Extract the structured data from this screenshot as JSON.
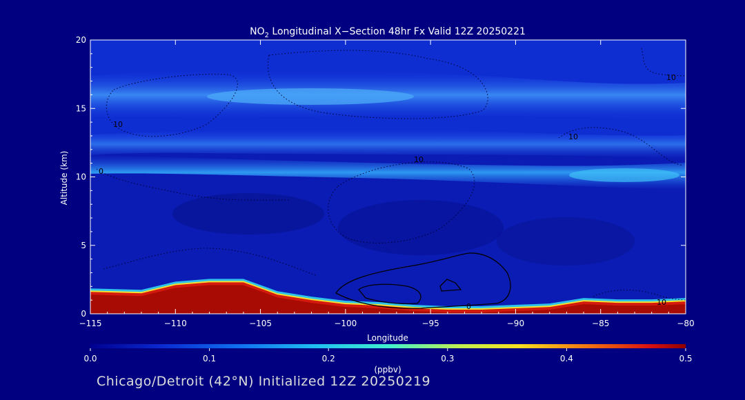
{
  "chart_data": {
    "type": "heatmap",
    "title_prefix": "NO",
    "title_sub": "2",
    "title_suffix": " Longitudinal X−Section 48hr  Fx Valid 12Z 20250221",
    "xlabel": "Longitude",
    "ylabel": "Altitude (km)",
    "xlim": [
      -115,
      -80
    ],
    "ylim": [
      0,
      20
    ],
    "x_ticks": [
      -115,
      -110,
      -105,
      -100,
      -95,
      -90,
      -85,
      -80
    ],
    "x_tick_labels": [
      "−115",
      "−110",
      "−105",
      "−100",
      "−95",
      "−90",
      "−85",
      "−80"
    ],
    "y_ticks": [
      0,
      5,
      10,
      15,
      20
    ],
    "y_tick_labels": [
      "0",
      "5",
      "10",
      "15",
      "20"
    ],
    "colorbar": {
      "range": [
        0.0,
        0.5
      ],
      "ticks": [
        "0.0",
        "0.1",
        "0.2",
        "0.3",
        "0.4",
        "0.5"
      ],
      "unit": "(ppbv)"
    },
    "colors": {
      "background": "#000080",
      "field_low": "#0a14a6",
      "field_band": "#2b6cf2",
      "field_band_high": "#3aa7f4",
      "surface_high": "#d41a0c"
    },
    "contour_labels": [
      "10",
      "10",
      "10",
      "10",
      "10",
      "0",
      "0"
    ],
    "surface_profile": {
      "longitude": [
        -115,
        -112,
        -110,
        -108,
        -106,
        -104,
        -102,
        -100,
        -98,
        -96,
        -94,
        -92,
        -90,
        -88,
        -86,
        -84,
        -82,
        -80
      ],
      "altitude_km": [
        1.6,
        1.5,
        2.1,
        2.3,
        2.3,
        1.4,
        1.0,
        0.7,
        0.6,
        0.4,
        0.3,
        0.3,
        0.4,
        0.5,
        0.9,
        0.8,
        0.8,
        0.9
      ]
    },
    "upper_bands": [
      {
        "name": "",
        "altitude_km": 15.8,
        "peak_ppbv": 0.16
      },
      {
        "name": "",
        "altitude_km": 12.5,
        "peak_ppbv": 0.12
      },
      {
        "name": "",
        "altitude_km": 10.2,
        "peak_ppbv": 0.14
      }
    ]
  },
  "footer": "Chicago/Detroit (42°N) Initialized 12Z 20250219"
}
